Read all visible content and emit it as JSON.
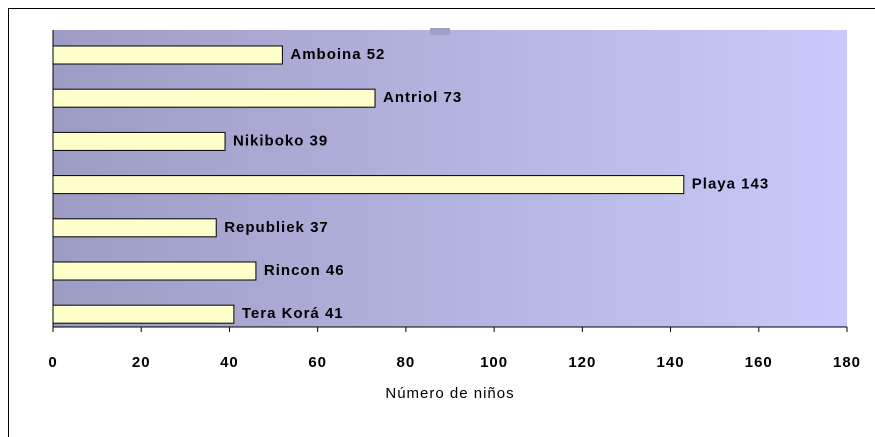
{
  "chart_data": {
    "type": "bar",
    "orientation": "horizontal",
    "x_label": "Número de niños",
    "categories": [
      "Amboina",
      "Antriol",
      "Nikiboko",
      "Playa",
      "Republiek",
      "Rincon",
      "Tera Korá"
    ],
    "values": [
      52,
      73,
      39,
      143,
      37,
      46,
      41
    ],
    "color": "#ffffcc",
    "xlim": [
      0,
      180
    ],
    "xticks": [
      0,
      20,
      40,
      60,
      80,
      100,
      120,
      140,
      160,
      180
    ]
  }
}
